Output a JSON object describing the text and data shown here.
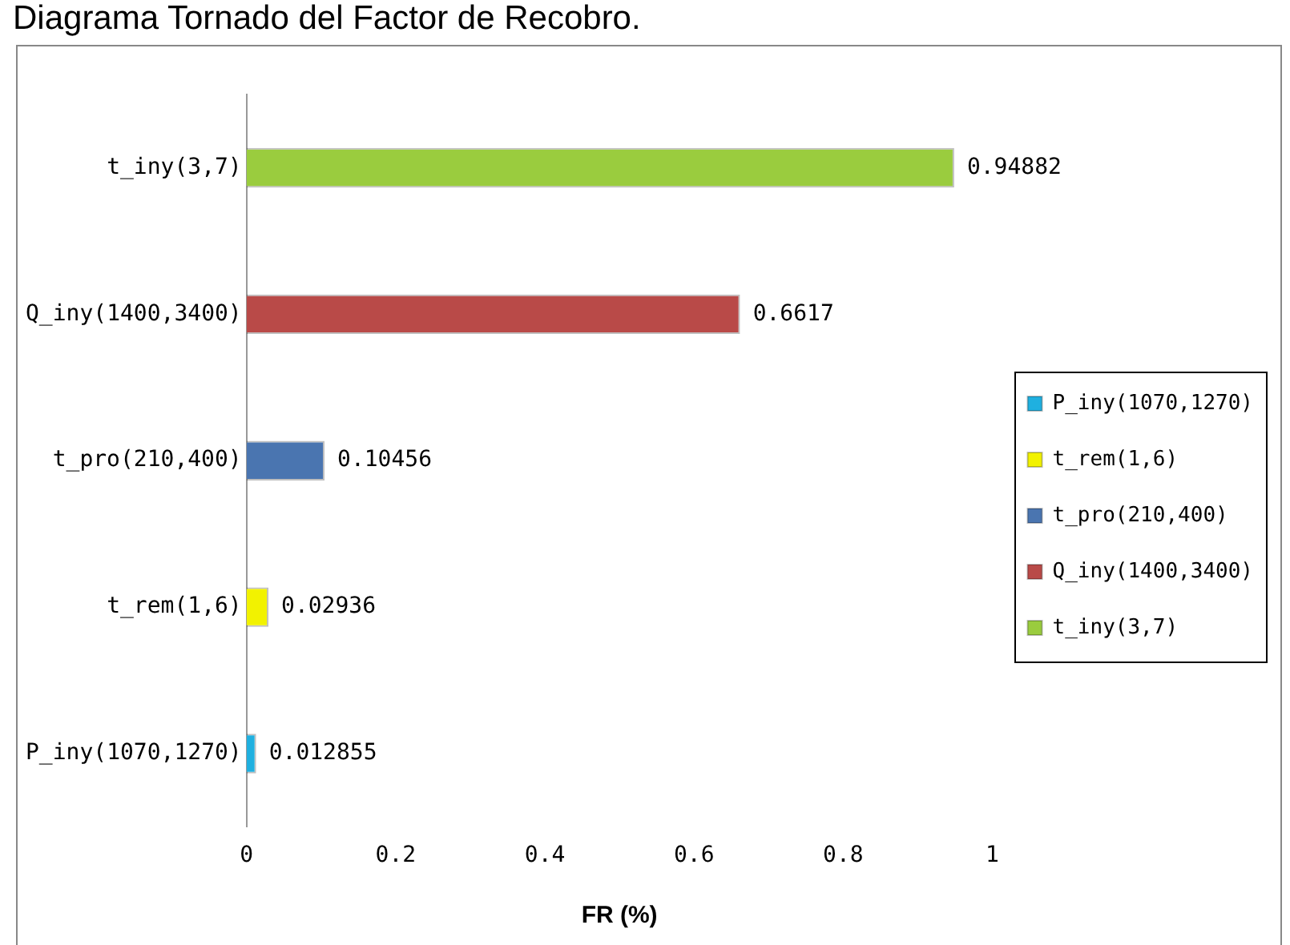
{
  "chart_data": {
    "type": "bar",
    "orientation": "horizontal",
    "title": "Diagrama Tornado del Factor de Recobro.",
    "xlabel": "FR (%)",
    "categories": [
      "t_iny(3,7)",
      "Q_iny(1400,3400)",
      "t_pro(210,400)",
      "t_rem(1,6)",
      "P_iny(1070,1270)"
    ],
    "series": [
      {
        "name": "P_iny(1070,1270)",
        "color": "#1fb0e0",
        "values": [
          null,
          null,
          null,
          null,
          0.012855
        ]
      },
      {
        "name": "t_rem(1,6)",
        "color": "#f2f200",
        "values": [
          null,
          null,
          null,
          0.02936,
          null
        ]
      },
      {
        "name": "t_pro(210,400)",
        "color": "#4a75b0",
        "values": [
          null,
          null,
          0.10456,
          null,
          null
        ]
      },
      {
        "name": "Q_iny(1400,3400)",
        "color": "#b94a48",
        "values": [
          null,
          0.6617,
          null,
          null,
          null
        ]
      },
      {
        "name": "t_iny(3,7)",
        "color": "#9acc3e",
        "values": [
          0.94882,
          null,
          null,
          null,
          null
        ]
      }
    ],
    "xlim": [
      0,
      1
    ],
    "xticks": [
      0,
      0.2,
      0.4,
      0.6,
      0.8,
      1
    ],
    "grid": false,
    "legend": "right",
    "data_labels": true
  }
}
